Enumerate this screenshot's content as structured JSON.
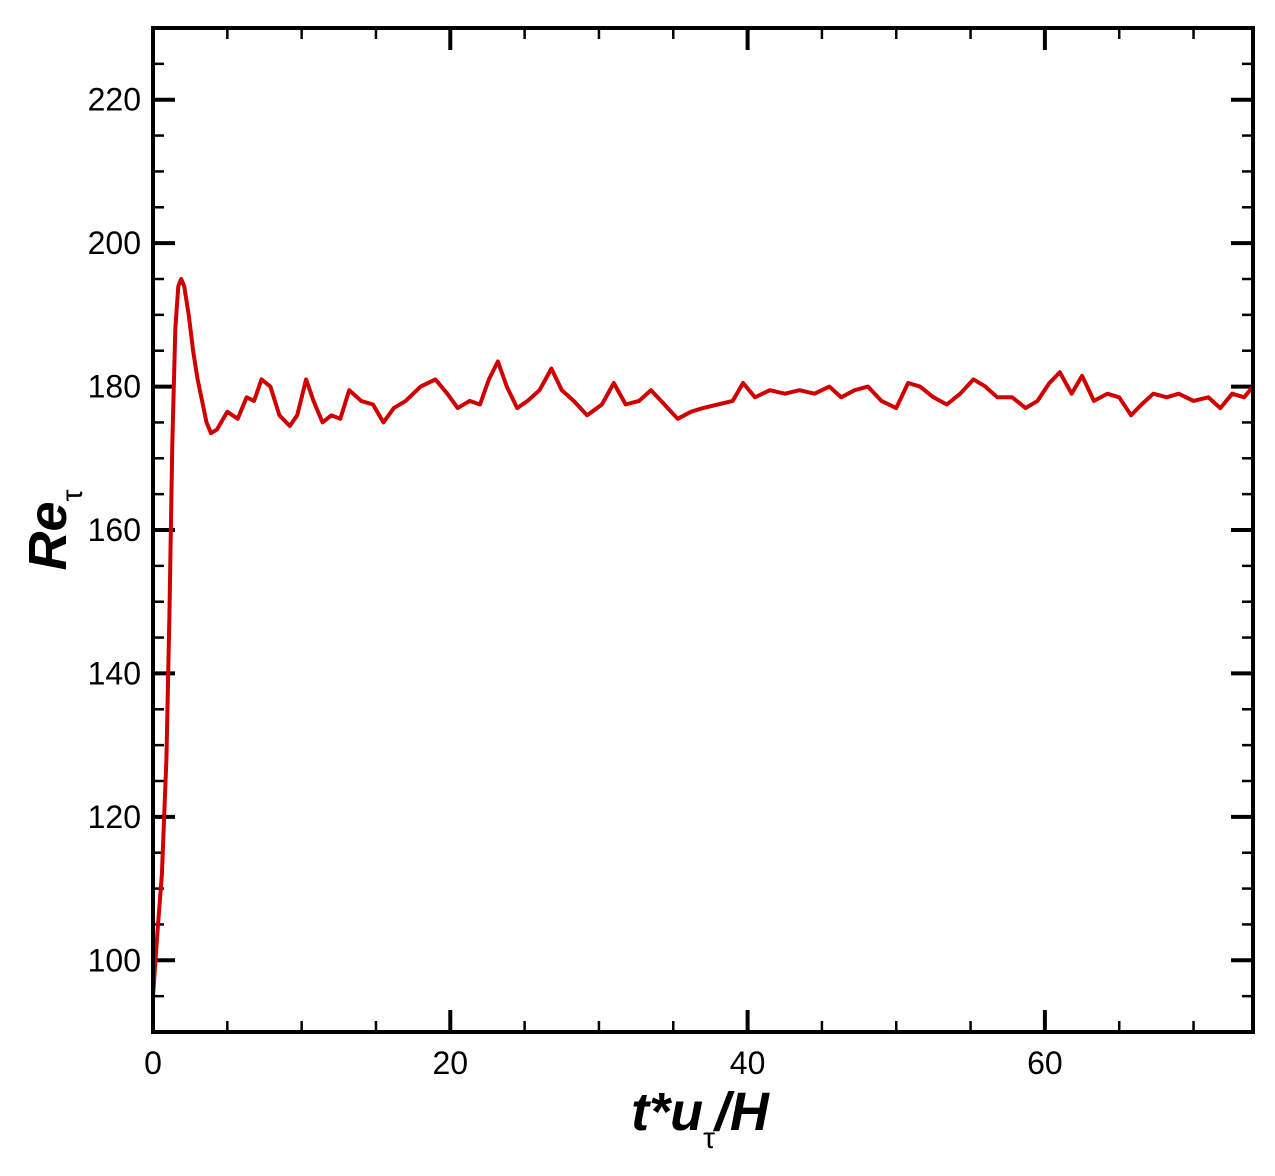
{
  "chart_data": {
    "type": "line",
    "xlabel": [
      "t*u",
      "τ",
      "/H"
    ],
    "ylabel": [
      "Re",
      "τ"
    ],
    "xlim": [
      0,
      74
    ],
    "ylim": [
      90,
      230
    ],
    "xticks": [
      0,
      20,
      40,
      60
    ],
    "yticks": [
      100,
      120,
      140,
      160,
      180,
      200,
      220
    ],
    "minor_ticks": true,
    "series": [
      {
        "color": "#d00000",
        "x": [
          0,
          0.3,
          0.6,
          0.9,
          1.1,
          1.3,
          1.5,
          1.7,
          1.9,
          2.1,
          2.4,
          2.7,
          3.0,
          3.3,
          3.6,
          3.9,
          4.3,
          5.0,
          5.7,
          6.3,
          6.8,
          7.3,
          7.9,
          8.5,
          9.2,
          9.7,
          10.3,
          10.8,
          11.4,
          12.0,
          12.6,
          13.2,
          14.0,
          14.8,
          15.5,
          16.2,
          17.0,
          18.0,
          19.0,
          19.8,
          20.5,
          21.3,
          22.0,
          22.6,
          23.2,
          23.8,
          24.5,
          25.2,
          26.0,
          26.8,
          27.5,
          28.3,
          29.2,
          30.2,
          31.0,
          31.8,
          32.7,
          33.5,
          34.4,
          35.3,
          36.2,
          37.0,
          38.0,
          39.0,
          39.7,
          40.5,
          41.5,
          42.5,
          43.5,
          44.5,
          45.5,
          46.3,
          47.2,
          48.1,
          49.0,
          50.0,
          50.8,
          51.6,
          52.5,
          53.4,
          54.3,
          55.2,
          56.0,
          56.8,
          57.8,
          58.7,
          59.5,
          60.3,
          61.0,
          61.8,
          62.5,
          63.3,
          64.2,
          65.0,
          65.8,
          66.5,
          67.3,
          68.2,
          69.0,
          70.0,
          71.0,
          71.8,
          72.6,
          73.4,
          74.0
        ],
        "values": [
          95,
          104,
          112,
          128,
          148,
          172,
          188,
          194,
          195,
          194,
          190,
          185,
          181,
          178,
          175,
          173.5,
          174,
          176.5,
          175.5,
          178.5,
          178,
          181,
          180,
          176,
          174.5,
          176,
          181,
          178,
          175,
          176,
          175.5,
          179.5,
          178,
          177.5,
          175,
          177,
          178,
          180,
          181,
          179,
          177,
          178,
          177.5,
          181,
          183.5,
          180,
          177,
          178,
          179.5,
          182.5,
          179.5,
          178,
          176,
          177.5,
          180.5,
          177.5,
          178,
          179.5,
          177.5,
          175.5,
          176.5,
          177,
          177.5,
          178,
          180.5,
          178.5,
          179.5,
          179,
          179.5,
          179,
          180,
          178.5,
          179.5,
          180,
          178,
          177,
          180.5,
          180,
          178.5,
          177.5,
          179,
          181,
          180,
          178.5,
          178.5,
          177,
          178,
          180.5,
          182,
          179,
          181.5,
          178,
          179,
          178.5,
          176,
          177.5,
          179,
          178.5,
          179,
          178,
          178.5,
          177,
          179,
          178.5,
          180
        ]
      }
    ]
  }
}
